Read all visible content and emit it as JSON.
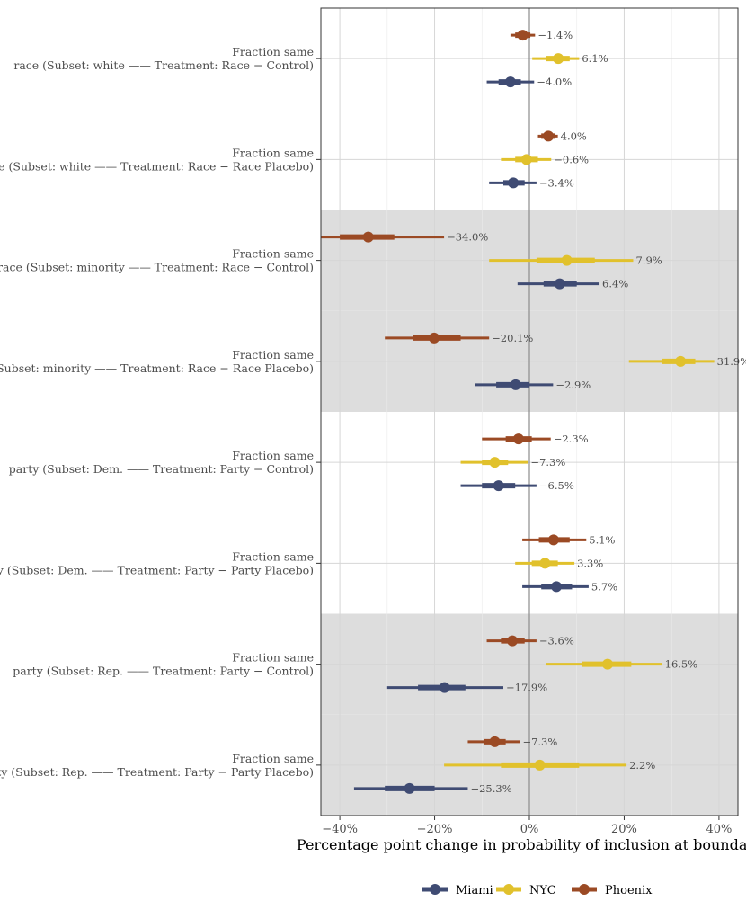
{
  "chart_data": {
    "type": "forest",
    "xlabel": "Percentage point change in probability of inclusion at boundary",
    "xlim": [
      -44,
      44
    ],
    "xticks": [
      -40,
      -20,
      0,
      20,
      40
    ],
    "xtick_labels": [
      "−40%",
      "−20%",
      "0%",
      "20%",
      "40%"
    ],
    "colors": {
      "Miami": "#3f4b73",
      "NYC": "#e1c12c",
      "Phoenix": "#9b4a24"
    },
    "legend": [
      "Miami",
      "NYC",
      "Phoenix"
    ],
    "groups": [
      {
        "label_line1": "Fraction same",
        "label_line2": "race (Subset: white —— Treatment: Race − Control)",
        "shaded": false,
        "points": [
          {
            "series": "Phoenix",
            "est": -1.4,
            "inner": [
              -3.0,
              0.2
            ],
            "outer": [
              -4.0,
              1.2
            ],
            "label": "−1.4%"
          },
          {
            "series": "NYC",
            "est": 6.1,
            "inner": [
              3.5,
              8.5
            ],
            "outer": [
              0.6,
              10.5
            ],
            "label": "6.1%"
          },
          {
            "series": "Miami",
            "est": -4.0,
            "inner": [
              -6.5,
              -1.8
            ],
            "outer": [
              -9.0,
              1.0
            ],
            "label": "−4.0%"
          }
        ]
      },
      {
        "label_line1": "Fraction same",
        "label_line2": "race (Subset: white —— Treatment: Race − Race Placebo)",
        "shaded": false,
        "points": [
          {
            "series": "Phoenix",
            "est": 4.0,
            "inner": [
              2.5,
              5.5
            ],
            "outer": [
              1.8,
              6.0
            ],
            "label": "4.0%"
          },
          {
            "series": "NYC",
            "est": -0.6,
            "inner": [
              -3.0,
              1.8
            ],
            "outer": [
              -6.0,
              4.6
            ],
            "label": "−0.6%"
          },
          {
            "series": "Miami",
            "est": -3.4,
            "inner": [
              -5.5,
              -1.0
            ],
            "outer": [
              -8.5,
              1.5
            ],
            "label": "−3.4%"
          }
        ]
      },
      {
        "label_line1": "Fraction same",
        "label_line2": "race (Subset: minority —— Treatment: Race − Control)",
        "shaded": true,
        "points": [
          {
            "series": "Phoenix",
            "est": -34.0,
            "inner": [
              -40.0,
              -28.5
            ],
            "outer": [
              -44.5,
              -18.0
            ],
            "label": "−34.0%"
          },
          {
            "series": "NYC",
            "est": 7.9,
            "inner": [
              1.5,
              13.8
            ],
            "outer": [
              -8.5,
              21.9
            ],
            "label": "7.9%"
          },
          {
            "series": "Miami",
            "est": 6.4,
            "inner": [
              3.0,
              10.0
            ],
            "outer": [
              -2.5,
              14.8
            ],
            "label": "6.4%"
          }
        ]
      },
      {
        "label_line1": "Fraction same",
        "label_line2": "race (Subset: minority —— Treatment: Race − Race Placebo)",
        "shaded": true,
        "points": [
          {
            "series": "Phoenix",
            "est": -20.1,
            "inner": [
              -24.5,
              -14.5
            ],
            "outer": [
              -30.5,
              -8.5
            ],
            "label": "−20.1%"
          },
          {
            "series": "NYC",
            "est": 31.9,
            "inner": [
              28.0,
              35.0
            ],
            "outer": [
              21.0,
              39.0
            ],
            "label": "31.9%"
          },
          {
            "series": "Miami",
            "est": -2.9,
            "inner": [
              -7.0,
              0.0
            ],
            "outer": [
              -11.5,
              5.0
            ],
            "label": "−2.9%"
          }
        ]
      },
      {
        "label_line1": "Fraction same",
        "label_line2": "party (Subset: Dem. —— Treatment: Party − Control)",
        "shaded": false,
        "points": [
          {
            "series": "Phoenix",
            "est": -2.3,
            "inner": [
              -5.0,
              0.5
            ],
            "outer": [
              -10.0,
              4.5
            ],
            "label": "−2.3%"
          },
          {
            "series": "NYC",
            "est": -7.3,
            "inner": [
              -10.0,
              -4.5
            ],
            "outer": [
              -14.5,
              -0.3
            ],
            "label": "−7.3%"
          },
          {
            "series": "Miami",
            "est": -6.5,
            "inner": [
              -10.0,
              -3.0
            ],
            "outer": [
              -14.5,
              1.5
            ],
            "label": "−6.5%"
          }
        ]
      },
      {
        "label_line1": "Fraction same",
        "label_line2": "party (Subset: Dem. —— Treatment: Party − Party Placebo)",
        "shaded": false,
        "points": [
          {
            "series": "Phoenix",
            "est": 5.1,
            "inner": [
              2.0,
              8.5
            ],
            "outer": [
              -1.5,
              12.0
            ],
            "label": "5.1%"
          },
          {
            "series": "NYC",
            "est": 3.3,
            "inner": [
              0.5,
              6.0
            ],
            "outer": [
              -3.0,
              9.5
            ],
            "label": "3.3%"
          },
          {
            "series": "Miami",
            "est": 5.7,
            "inner": [
              2.5,
              9.0
            ],
            "outer": [
              -1.5,
              12.5
            ],
            "label": "5.7%"
          }
        ]
      },
      {
        "label_line1": "Fraction same",
        "label_line2": "party (Subset: Rep. —— Treatment: Party − Control)",
        "shaded": true,
        "points": [
          {
            "series": "Phoenix",
            "est": -3.6,
            "inner": [
              -6.0,
              -1.0
            ],
            "outer": [
              -9.0,
              1.5
            ],
            "label": "−3.6%"
          },
          {
            "series": "NYC",
            "est": 16.5,
            "inner": [
              11.0,
              21.5
            ],
            "outer": [
              3.5,
              28.0
            ],
            "label": "16.5%"
          },
          {
            "series": "Miami",
            "est": -17.9,
            "inner": [
              -23.5,
              -13.5
            ],
            "outer": [
              -30.0,
              -5.5
            ],
            "label": "−17.9%"
          }
        ]
      },
      {
        "label_line1": "Fraction same",
        "label_line2": "party (Subset: Rep. —— Treatment: Party − Party Placebo)",
        "shaded": true,
        "points": [
          {
            "series": "Phoenix",
            "est": -7.3,
            "inner": [
              -9.5,
              -5.0
            ],
            "outer": [
              -13.0,
              -2.0
            ],
            "label": "−7.3%"
          },
          {
            "series": "NYC",
            "est": 2.2,
            "inner": [
              -6.0,
              10.5
            ],
            "outer": [
              -18.0,
              20.5
            ],
            "label": "2.2%"
          },
          {
            "series": "Miami",
            "est": -25.3,
            "inner": [
              -30.5,
              -20.0
            ],
            "outer": [
              -37.0,
              -13.0
            ],
            "label": "−25.3%"
          }
        ]
      }
    ]
  }
}
